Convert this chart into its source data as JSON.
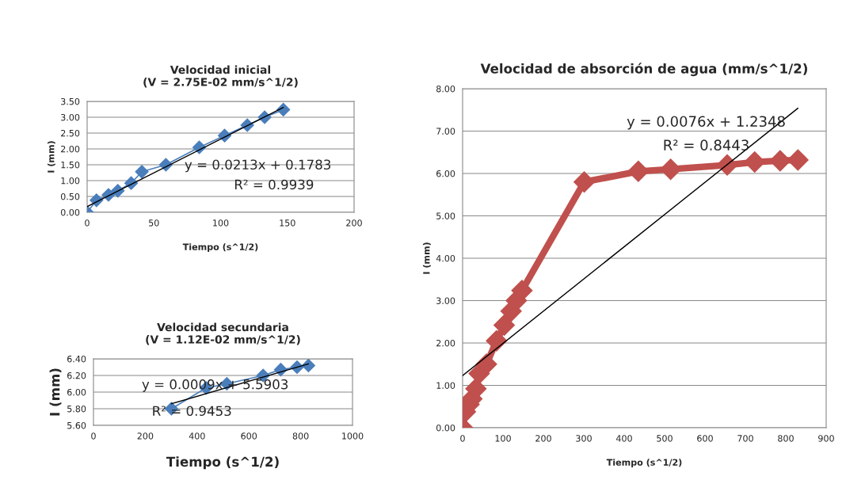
{
  "chart_data": [
    {
      "type": "line",
      "title": "Velocidad inicial",
      "subtitle": "(V = 2.75E-02 mm/s^1/2)",
      "xlabel": "Tiempo (s^1/2)",
      "ylabel": "I (mm)",
      "marker": "diamond",
      "grid": "y",
      "legend": false,
      "series": [
        {
          "color": "#4a7ebb",
          "x": [
            0,
            7,
            16,
            23,
            33,
            41,
            59,
            84,
            103,
            120,
            133,
            147
          ],
          "values": [
            0,
            0.38,
            0.55,
            0.68,
            0.92,
            1.28,
            1.5,
            2.05,
            2.42,
            2.75,
            3.0,
            3.24
          ]
        },
        {
          "type": "line",
          "marker": "none",
          "color": "#000000",
          "x": [
            0,
            147
          ],
          "values": [
            0.18,
            3.31
          ]
        }
      ],
      "xlim": [
        0,
        200
      ],
      "xticks": [
        0,
        50,
        100,
        150,
        200
      ],
      "ylim": [
        0,
        3.5
      ],
      "yticks": [
        {
          "value": 0,
          "label": "0.00"
        },
        {
          "value": 0.5,
          "label": "0.50"
        },
        {
          "value": 1,
          "label": "1.00"
        },
        {
          "value": 1.5,
          "label": "1.50"
        },
        {
          "value": 2,
          "label": "2.00"
        },
        {
          "value": 2.5,
          "label": "2.50"
        },
        {
          "value": 3,
          "label": "3.00"
        },
        {
          "value": 3.5,
          "label": "3.50"
        }
      ],
      "annotations": [
        "y = 0.0213x + 0.1783",
        "R² = 0.9939"
      ]
    },
    {
      "type": "line",
      "title": "Velocidad secundaria",
      "subtitle": "(V = 1.12E-02 mm/s^1/2)",
      "xlabel": "Tiempo (s^1/2)",
      "ylabel": "I (mm)",
      "marker": "diamond",
      "grid": "y",
      "legend": false,
      "series": [
        {
          "color": "#4a7ebb",
          "x": [
            301,
            435,
            515,
            655,
            723,
            786,
            830
          ],
          "values": [
            5.8,
            6.05,
            6.1,
            6.2,
            6.27,
            6.3,
            6.32
          ]
        },
        {
          "type": "line",
          "marker": "none",
          "color": "#000000",
          "x": [
            301,
            830
          ],
          "values": [
            5.86,
            6.34
          ]
        }
      ],
      "xlim": [
        0,
        1000
      ],
      "xticks": [
        0,
        200,
        400,
        600,
        800,
        1000
      ],
      "ylim": [
        5.6,
        6.4
      ],
      "yticks": [
        {
          "value": 5.6,
          "label": "5.60"
        },
        {
          "value": 5.8,
          "label": "5.80"
        },
        {
          "value": 6.0,
          "label": "6.00"
        },
        {
          "value": 6.2,
          "label": "6.20"
        },
        {
          "value": 6.4,
          "label": "6.40"
        }
      ],
      "annotations": [
        "y = 0.0009x + 5.5903",
        "R² = 0.9453"
      ]
    },
    {
      "type": "line",
      "title": "Velocidad de absorción de agua (mm/s^1/2)",
      "xlabel": "Tiempo (s^1/2)",
      "ylabel": "I (mm)",
      "marker": "diamond",
      "grid": "y",
      "legend": false,
      "series": [
        {
          "color": "#c0504d",
          "x": [
            0,
            7,
            16,
            23,
            33,
            41,
            59,
            84,
            103,
            120,
            133,
            147,
            301,
            435,
            515,
            655,
            723,
            786,
            830
          ],
          "values": [
            0,
            0.38,
            0.55,
            0.68,
            0.92,
            1.28,
            1.5,
            2.05,
            2.42,
            2.75,
            3.0,
            3.24,
            5.8,
            6.05,
            6.1,
            6.2,
            6.27,
            6.3,
            6.32
          ]
        },
        {
          "type": "line",
          "marker": "none",
          "color": "#000000",
          "x": [
            0,
            830
          ],
          "values": [
            1.23,
            7.54
          ]
        }
      ],
      "xlim": [
        0,
        900
      ],
      "xticks": [
        0,
        100,
        200,
        300,
        400,
        500,
        600,
        700,
        800,
        900
      ],
      "ylim": [
        0,
        8
      ],
      "yticks": [
        {
          "value": 0,
          "label": "0.00"
        },
        {
          "value": 1,
          "label": "1.00"
        },
        {
          "value": 2,
          "label": "2.00"
        },
        {
          "value": 3,
          "label": "3.00"
        },
        {
          "value": 4,
          "label": "4.00"
        },
        {
          "value": 5,
          "label": "5.00"
        },
        {
          "value": 6,
          "label": "6.00"
        },
        {
          "value": 7,
          "label": "7.00"
        },
        {
          "value": 8,
          "label": "8.00"
        }
      ],
      "annotations": [
        "y = 0.0076x + 1.2348",
        "R² = 0.8443"
      ]
    }
  ]
}
